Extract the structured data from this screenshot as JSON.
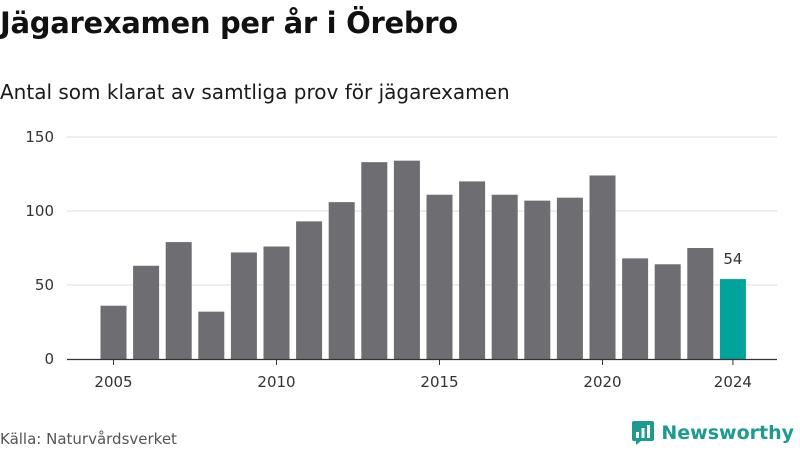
{
  "chart_data": {
    "type": "bar",
    "title": "Jägarexamen per år i Örebro",
    "subtitle": "Antal som klarat av samtliga prov för jägarexamen",
    "x": [
      2005,
      2006,
      2007,
      2008,
      2009,
      2010,
      2011,
      2012,
      2013,
      2014,
      2015,
      2016,
      2017,
      2018,
      2019,
      2020,
      2021,
      2022,
      2023,
      2024
    ],
    "values": [
      36,
      63,
      79,
      32,
      72,
      76,
      93,
      106,
      133,
      134,
      111,
      120,
      111,
      107,
      109,
      124,
      68,
      64,
      75,
      54
    ],
    "highlight_index": 19,
    "highlight_label": "54",
    "xticks": [
      2005,
      2010,
      2015,
      2020,
      2024
    ],
    "yticks": [
      0,
      50,
      100,
      150
    ],
    "ylim": [
      0,
      150
    ],
    "xlabel": "",
    "ylabel": "",
    "grid": true,
    "colors": {
      "bar": "#6e6d72",
      "highlight": "#00a49a",
      "grid": "#dddddd",
      "axis": "#333333"
    }
  },
  "source": "Källa: Naturvårdsverket",
  "brand": {
    "name": "Newsworthy",
    "icon": "newsworthy-logo-icon",
    "color": "#1f9a8f"
  }
}
